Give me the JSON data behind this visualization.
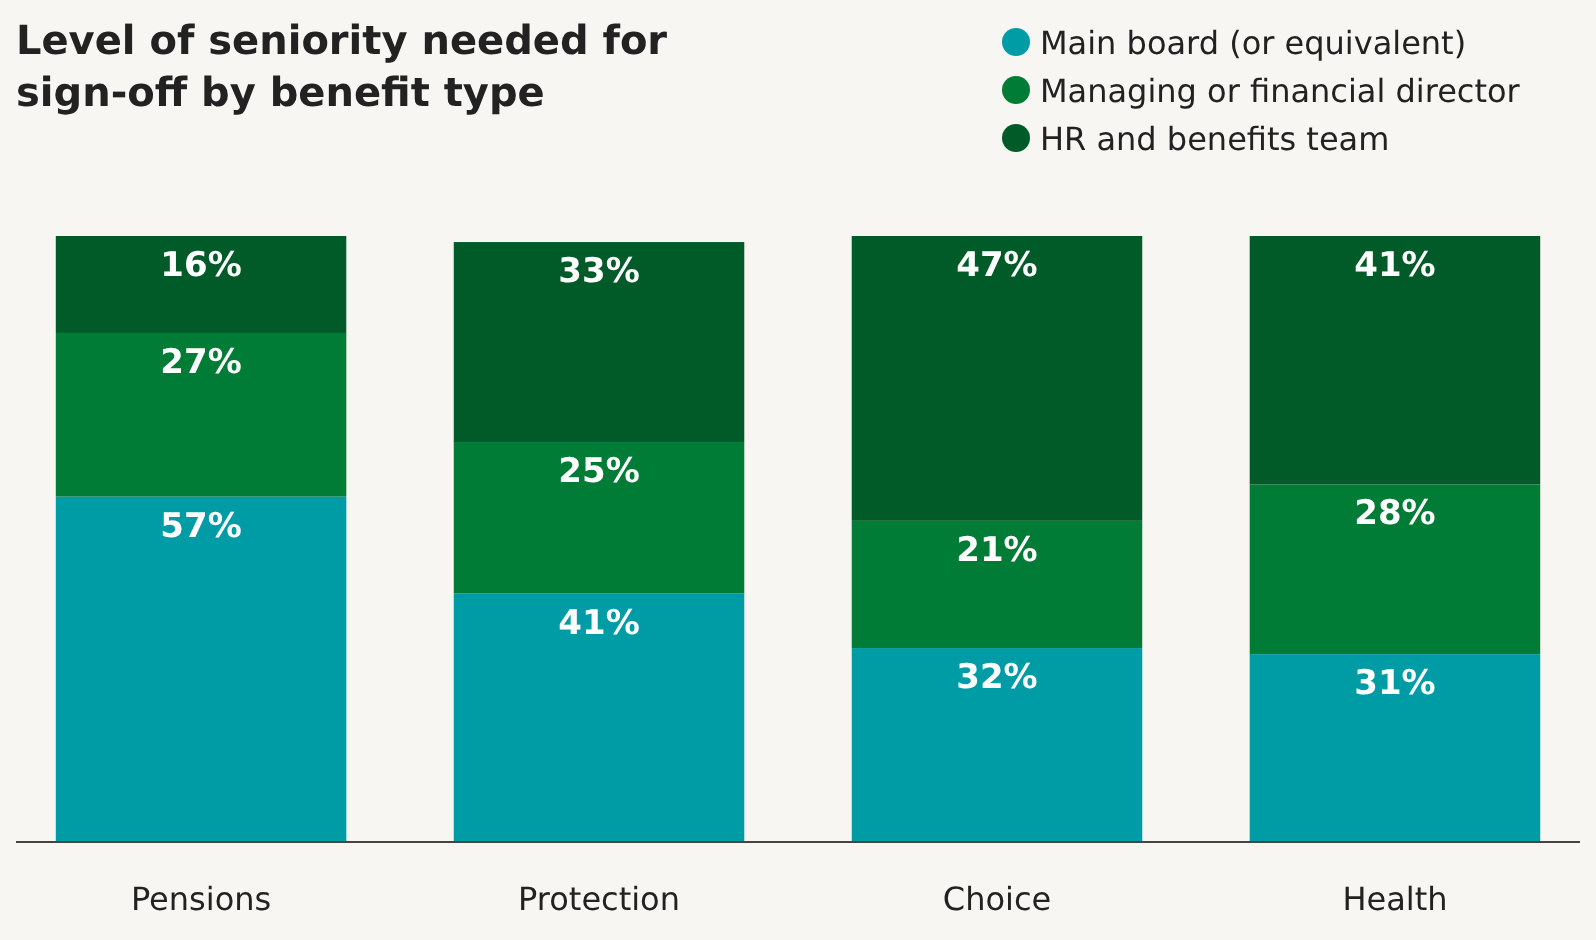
{
  "chart_data": {
    "type": "bar",
    "title": "Level of seniority needed for sign-off by benefit type",
    "categories": [
      "Pensions",
      "Protection",
      "Choice",
      "Health"
    ],
    "stacked": true,
    "legend": "top right",
    "grid": false,
    "series": [
      {
        "name": "Main board (or equivalent)",
        "color": "#009ca6",
        "values": [
          57,
          41,
          32,
          31
        ],
        "value_labels": [
          "57%",
          "41%",
          "32%",
          "31%"
        ]
      },
      {
        "name": "Managing or financial director",
        "color": "#007c36",
        "values": [
          27,
          25,
          21,
          28
        ],
        "value_labels": [
          "27%",
          "25%",
          "21%",
          "28%"
        ]
      },
      {
        "name": "HR and benefits team",
        "color": "#005b28",
        "values": [
          16,
          33,
          47,
          41
        ],
        "value_labels": [
          "16%",
          "33%",
          "47%",
          "41%"
        ]
      }
    ]
  }
}
